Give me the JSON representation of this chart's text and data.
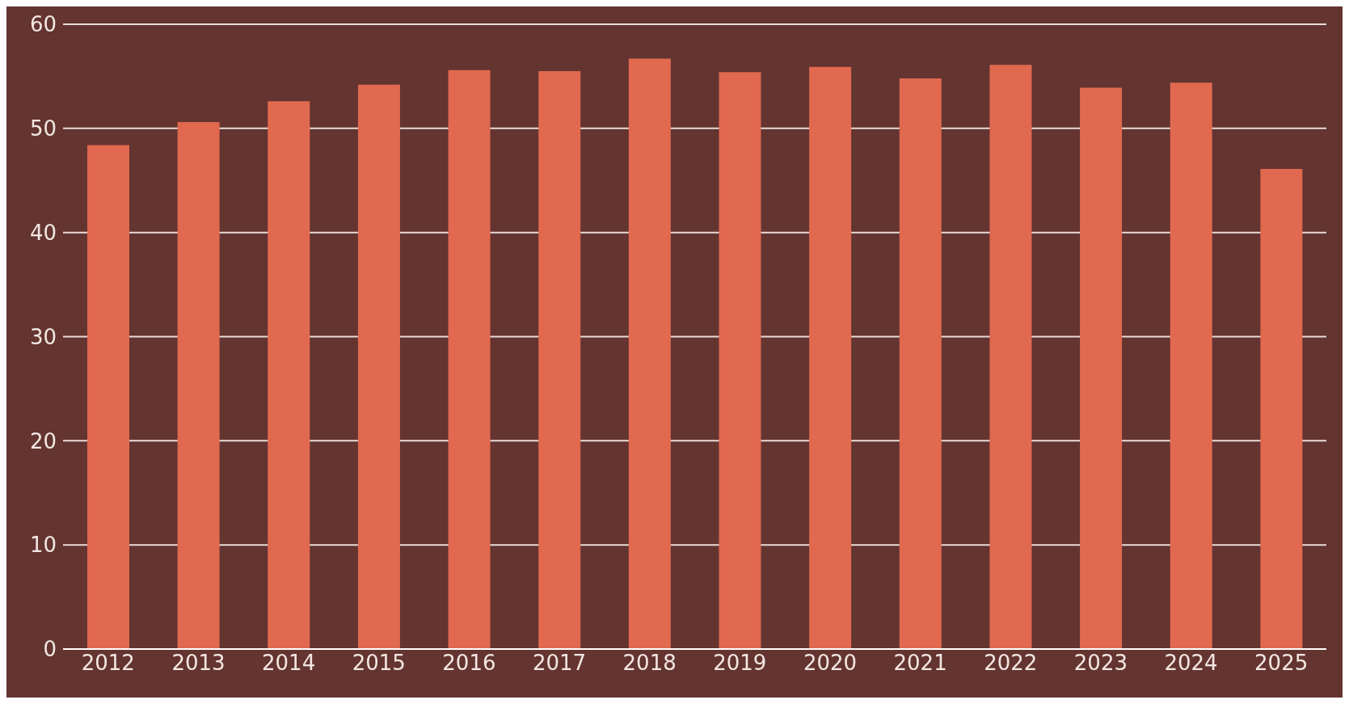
{
  "chart_data": {
    "type": "bar",
    "categories": [
      "2012",
      "2013",
      "2014",
      "2015",
      "2016",
      "2017",
      "2018",
      "2019",
      "2020",
      "2021",
      "2022",
      "2023",
      "2024",
      "2025"
    ],
    "values": [
      48.4,
      50.6,
      52.6,
      54.2,
      55.6,
      55.5,
      56.7,
      55.4,
      55.9,
      54.8,
      56.1,
      53.9,
      54.4,
      46.1
    ],
    "color": "#e0694f",
    "ylim": [
      0,
      60
    ],
    "yticks": [
      0,
      10,
      20,
      30,
      40,
      50,
      60
    ],
    "grid": "y"
  }
}
